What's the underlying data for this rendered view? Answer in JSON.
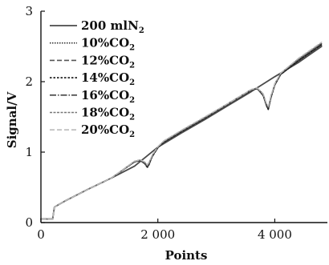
{
  "chart_data": {
    "type": "line",
    "xlabel": "Points",
    "ylabel": "Signal/V",
    "xlim": [
      0,
      4900
    ],
    "ylim": [
      0,
      3
    ],
    "x_ticks": [
      0,
      2000,
      4000
    ],
    "x_tick_labels": [
      "0",
      "2 000",
      "4 000"
    ],
    "y_ticks": [
      0,
      1,
      2,
      3
    ],
    "y_tick_labels": [
      "0",
      "1",
      "2",
      "3"
    ],
    "grid": false,
    "legend_position": "top-left",
    "series": [
      {
        "name": "200 mlN2",
        "label_main": "200 mlN",
        "label_sub": "2",
        "color": "#4a4a4a",
        "dash": "",
        "x": [
          0,
          200,
          230,
          400,
          800,
          1200,
          1600,
          2000,
          2400,
          2800,
          3200,
          3600,
          4000,
          4400,
          4800
        ],
        "y": [
          0.05,
          0.05,
          0.22,
          0.3,
          0.47,
          0.63,
          0.8,
          1.07,
          1.27,
          1.46,
          1.66,
          1.86,
          2.07,
          2.27,
          2.5
        ]
      },
      {
        "name": "10%CO2",
        "label_main": "10%CO",
        "label_sub": "2",
        "color": "#333333",
        "dash": "1.5,1.5",
        "x": [
          0,
          200,
          230,
          400,
          800,
          1200,
          1600,
          1700,
          1780,
          1820,
          1850,
          1900,
          2000,
          2100,
          2400,
          2800,
          3200,
          3600,
          3700,
          3800,
          3860,
          3890,
          3930,
          4000,
          4100,
          4400,
          4800
        ],
        "y": [
          0.05,
          0.05,
          0.22,
          0.3,
          0.47,
          0.63,
          0.86,
          0.88,
          0.83,
          0.78,
          0.82,
          0.93,
          1.06,
          1.14,
          1.29,
          1.48,
          1.68,
          1.88,
          1.9,
          1.8,
          1.65,
          1.6,
          1.75,
          1.95,
          2.1,
          2.29,
          2.52
        ]
      },
      {
        "name": "12%CO2",
        "label_main": "12%CO",
        "label_sub": "2",
        "color": "#555555",
        "dash": "6,3",
        "x": [
          0,
          200,
          230,
          400,
          800,
          1200,
          1600,
          1700,
          1780,
          1820,
          1850,
          1900,
          2000,
          2100,
          2400,
          2800,
          3200,
          3600,
          3700,
          3800,
          3860,
          3890,
          3930,
          4000,
          4100,
          4400,
          4800
        ],
        "y": [
          0.05,
          0.05,
          0.22,
          0.3,
          0.47,
          0.63,
          0.87,
          0.89,
          0.85,
          0.8,
          0.84,
          0.94,
          1.07,
          1.15,
          1.3,
          1.49,
          1.69,
          1.89,
          1.91,
          1.82,
          1.67,
          1.62,
          1.77,
          1.96,
          2.11,
          2.31,
          2.55
        ]
      },
      {
        "name": "14%CO2",
        "label_main": "14%CO",
        "label_sub": "2",
        "color": "#111111",
        "dash": "2.5,2",
        "x": [
          0,
          200,
          230,
          400,
          800,
          1200,
          1600,
          1700,
          1780,
          1820,
          1850,
          1900,
          2000,
          2100,
          2400,
          2800,
          3200,
          3600,
          3700,
          3800,
          3860,
          3890,
          3930,
          4000,
          4100,
          4400,
          4800
        ],
        "y": [
          0.05,
          0.05,
          0.22,
          0.3,
          0.47,
          0.63,
          0.86,
          0.88,
          0.84,
          0.79,
          0.83,
          0.93,
          1.06,
          1.14,
          1.29,
          1.48,
          1.68,
          1.88,
          1.9,
          1.81,
          1.66,
          1.61,
          1.76,
          1.95,
          2.1,
          2.3,
          2.53
        ]
      },
      {
        "name": "16%CO2",
        "label_main": "16%CO",
        "label_sub": "2",
        "color": "#444444",
        "dash": "8,2,1.5,2",
        "x": [
          0,
          200,
          230,
          400,
          800,
          1200,
          1600,
          1700,
          1780,
          1820,
          1850,
          1900,
          2000,
          2100,
          2400,
          2800,
          3200,
          3600,
          3700,
          3800,
          3860,
          3890,
          3930,
          4000,
          4100,
          4400,
          4800
        ],
        "y": [
          0.05,
          0.05,
          0.22,
          0.3,
          0.47,
          0.63,
          0.86,
          0.88,
          0.84,
          0.8,
          0.84,
          0.94,
          1.07,
          1.15,
          1.3,
          1.49,
          1.68,
          1.88,
          1.9,
          1.81,
          1.67,
          1.62,
          1.77,
          1.96,
          2.11,
          2.31,
          2.54
        ]
      },
      {
        "name": "18%CO2",
        "label_main": "18%CO",
        "label_sub": "2",
        "color": "#777777",
        "dash": "3,1.5",
        "x": [
          0,
          200,
          230,
          400,
          800,
          1200,
          1600,
          1700,
          1780,
          1820,
          1850,
          1900,
          2000,
          2100,
          2400,
          2800,
          3200,
          3600,
          3700,
          3800,
          3860,
          3890,
          3930,
          4000,
          4100,
          4400,
          4800
        ],
        "y": [
          0.05,
          0.05,
          0.22,
          0.3,
          0.47,
          0.63,
          0.87,
          0.89,
          0.85,
          0.81,
          0.85,
          0.95,
          1.07,
          1.15,
          1.3,
          1.49,
          1.69,
          1.89,
          1.91,
          1.83,
          1.68,
          1.64,
          1.78,
          1.97,
          2.12,
          2.32,
          2.55
        ]
      },
      {
        "name": "20%CO2",
        "label_main": "20%CO",
        "label_sub": "2",
        "color": "#bbbbbb",
        "dash": "6,3",
        "x": [
          0,
          200,
          230,
          400,
          800,
          1200,
          1600,
          1700,
          1780,
          1820,
          1850,
          1900,
          2000,
          2100,
          2400,
          2800,
          3200,
          3600,
          3700,
          3800,
          3860,
          3890,
          3930,
          4000,
          4100,
          4400,
          4800
        ],
        "y": [
          0.05,
          0.05,
          0.22,
          0.3,
          0.47,
          0.63,
          0.87,
          0.89,
          0.86,
          0.82,
          0.86,
          0.95,
          1.08,
          1.16,
          1.31,
          1.5,
          1.69,
          1.89,
          1.91,
          1.83,
          1.69,
          1.65,
          1.79,
          1.97,
          2.12,
          2.33,
          2.56
        ]
      }
    ]
  }
}
